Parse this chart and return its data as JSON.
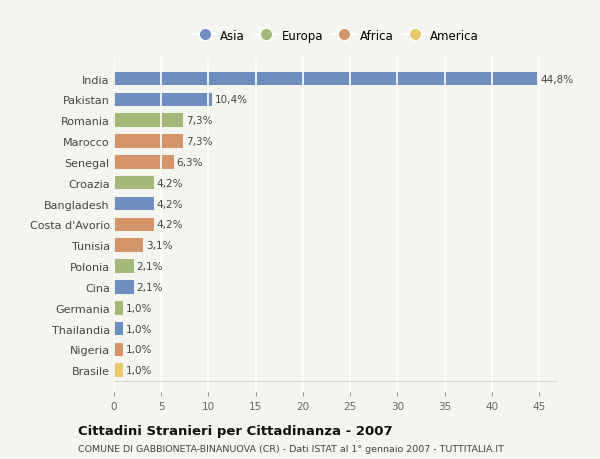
{
  "countries": [
    "India",
    "Pakistan",
    "Romania",
    "Marocco",
    "Senegal",
    "Croazia",
    "Bangladesh",
    "Costa d'Avorio",
    "Tunisia",
    "Polonia",
    "Cina",
    "Germania",
    "Thailandia",
    "Nigeria",
    "Brasile"
  ],
  "values": [
    44.8,
    10.4,
    7.3,
    7.3,
    6.3,
    4.2,
    4.2,
    4.2,
    3.1,
    2.1,
    2.1,
    1.0,
    1.0,
    1.0,
    1.0
  ],
  "labels": [
    "44,8%",
    "10,4%",
    "7,3%",
    "7,3%",
    "6,3%",
    "4,2%",
    "4,2%",
    "4,2%",
    "3,1%",
    "2,1%",
    "2,1%",
    "1,0%",
    "1,0%",
    "1,0%",
    "1,0%"
  ],
  "continents": [
    "Asia",
    "Asia",
    "Europa",
    "Africa",
    "Africa",
    "Europa",
    "Asia",
    "Africa",
    "Africa",
    "Europa",
    "Asia",
    "Europa",
    "Asia",
    "Africa",
    "America"
  ],
  "colors": {
    "Asia": "#6e8ebf",
    "Europa": "#a4b87a",
    "Africa": "#d4956a",
    "America": "#e8c96e"
  },
  "legend_labels": [
    "Asia",
    "Europa",
    "Africa",
    "America"
  ],
  "legend_colors": [
    "#6e8ebf",
    "#a4b87a",
    "#d4956a",
    "#e8c96e"
  ],
  "title": "Cittadini Stranieri per Cittadinanza - 2007",
  "subtitle": "COMUNE DI GABBIONETA-BINANUOVA (CR) - Dati ISTAT al 1° gennaio 2007 - TUTTITALIA.IT",
  "xlim": [
    0,
    47
  ],
  "xticks": [
    0,
    5,
    10,
    15,
    20,
    25,
    30,
    35,
    40,
    45
  ],
  "bg_color": "#f5f5f0",
  "grid_color": "#ffffff",
  "bar_height": 0.65
}
